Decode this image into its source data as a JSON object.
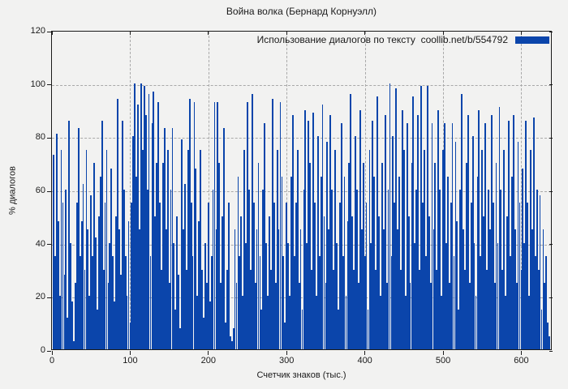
{
  "colors": {
    "bg": "#f2f2f1",
    "bar": "#0b45ab",
    "grid": "#a9a9a9",
    "frame": "#1a1a1a",
    "text": "#1a1a1a"
  },
  "chart_data": {
    "type": "bar",
    "title": "Война волка (Бернард Корнуэлл)",
    "xlabel": "Счетчик знаков (тыс.)",
    "ylabel": "% диалогов",
    "legend": {
      "label": "Использование диалогов по тексту  coollib.net/b/554792",
      "position": "top-right",
      "swatch_color": "#0b45ab"
    },
    "xlim": [
      0,
      640
    ],
    "ylim": [
      0,
      120
    ],
    "xticks": [
      0,
      100,
      200,
      300,
      400,
      500,
      600
    ],
    "yticks": [
      0,
      20,
      40,
      60,
      80,
      100,
      120
    ],
    "grid": true,
    "bar_color": "#0b45ab",
    "x_start": 2,
    "x_step": 2,
    "values": [
      73,
      35,
      81,
      48,
      20,
      75,
      55,
      28,
      60,
      12,
      86,
      40,
      18,
      3,
      25,
      55,
      83,
      35,
      48,
      62,
      30,
      75,
      45,
      20,
      58,
      35,
      70,
      42,
      15,
      50,
      65,
      86,
      30,
      55,
      75,
      25,
      40,
      68,
      35,
      18,
      50,
      94,
      45,
      28,
      86,
      60,
      35,
      20,
      48,
      10,
      55,
      80,
      100,
      65,
      92,
      45,
      100,
      75,
      99,
      88,
      60,
      96,
      35,
      85,
      97,
      50,
      70,
      93,
      55,
      30,
      70,
      83,
      45,
      75,
      25,
      60,
      83,
      40,
      15,
      50,
      28,
      8,
      79,
      45,
      62,
      30,
      75,
      94,
      55,
      35,
      93,
      68,
      20,
      48,
      75,
      30,
      12,
      40,
      25,
      55,
      18,
      35,
      60,
      93,
      45,
      93,
      70,
      25,
      50,
      83,
      10,
      30,
      55,
      5,
      3,
      8,
      45,
      25,
      65,
      35,
      50,
      20,
      75,
      40,
      93,
      60,
      30,
      96,
      55,
      25,
      45,
      70,
      35,
      15,
      60,
      85,
      40,
      20,
      50,
      30,
      94,
      55,
      25,
      75,
      45,
      93,
      65,
      35,
      10,
      55,
      40,
      20,
      65,
      88,
      35,
      55,
      75,
      25,
      45,
      15,
      60,
      90,
      40,
      86,
      70,
      30,
      89,
      55,
      20,
      80,
      35,
      65,
      92,
      50,
      25,
      78,
      45,
      88,
      60,
      30,
      75,
      40,
      15,
      55,
      85,
      35,
      65,
      20,
      48,
      70,
      96,
      50,
      30,
      80,
      60,
      25,
      90,
      45,
      70,
      35,
      55,
      15,
      75,
      40,
      86,
      65,
      30,
      95,
      50,
      20,
      70,
      45,
      88,
      25,
      60,
      100,
      35,
      80,
      55,
      98,
      45,
      65,
      30,
      90,
      75,
      20,
      85,
      50,
      25,
      70,
      95,
      40,
      60,
      88,
      30,
      99,
      55,
      75,
      35,
      99,
      50,
      25,
      85,
      45,
      70,
      30,
      90,
      60,
      20,
      75,
      85,
      40,
      65,
      25,
      55,
      85,
      35,
      78,
      48,
      15,
      60,
      96,
      45,
      30,
      70,
      88,
      25,
      55,
      80,
      40,
      20,
      65,
      90,
      35,
      75,
      50,
      85,
      30,
      60,
      45,
      88,
      55,
      25,
      70,
      40,
      91,
      60,
      30,
      75,
      20,
      50,
      86,
      35,
      65,
      88,
      45,
      25,
      78,
      55,
      30,
      68,
      40,
      86,
      55,
      20,
      75,
      45,
      87,
      35,
      60,
      30,
      58,
      15,
      45,
      25,
      35,
      10,
      5
    ]
  }
}
